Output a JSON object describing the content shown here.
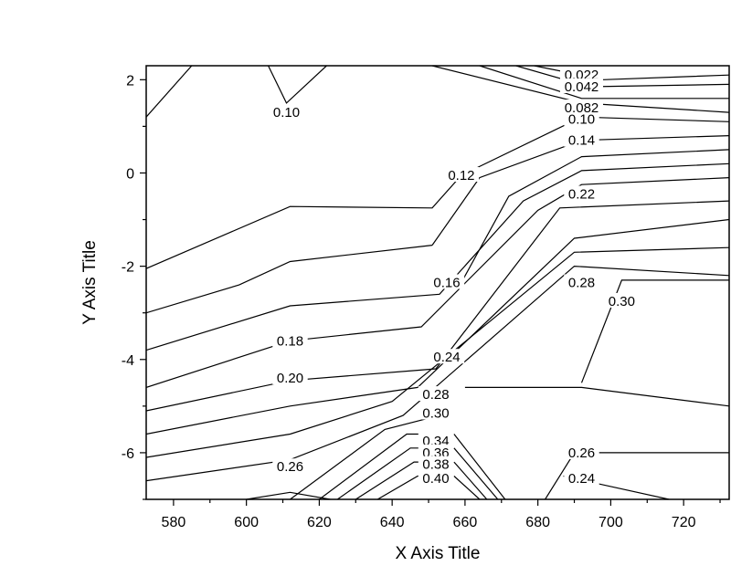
{
  "chart_data": {
    "type": "contour",
    "xlabel": "X Axis Title",
    "ylabel": "Y Axis Title",
    "xlim": [
      572.5,
      732.5
    ],
    "ylim": [
      -7,
      2.3
    ],
    "xticks": [
      580,
      600,
      620,
      640,
      660,
      680,
      700,
      720
    ],
    "yticks": [
      2,
      0,
      -2,
      -4,
      -6
    ],
    "contours": [
      {
        "level": "0.10",
        "labels": [
          {
            "x": 611,
            "y": 1.3
          },
          {
            "x": 692,
            "y": 1.15
          }
        ],
        "lines": [
          [
            [
              572.5,
              1.2
            ],
            [
              585,
              2.3
            ]
          ],
          [
            [
              606,
              2.3
            ],
            [
              611,
              1.5
            ],
            [
              622,
              2.3
            ]
          ],
          [
            [
              651,
              2.3
            ],
            [
              692,
              1.5
            ],
            [
              732.5,
              1.3
            ]
          ]
        ]
      },
      {
        "level": "0.022",
        "labels": [
          {
            "x": 692,
            "y": 2.1
          }
        ],
        "lines": [
          [
            [
              679,
              2.3
            ],
            [
              698,
              2.0
            ],
            [
              732.5,
              2.1
            ]
          ]
        ]
      },
      {
        "level": "0.042",
        "labels": [
          {
            "x": 692,
            "y": 1.85
          }
        ],
        "lines": [
          [
            [
              674,
              2.3
            ],
            [
              694,
              1.85
            ],
            [
              732.5,
              1.9
            ]
          ]
        ]
      },
      {
        "level": "0.082",
        "labels": [
          {
            "x": 692,
            "y": 1.4
          }
        ],
        "lines": [
          [
            [
              664,
              2.3
            ],
            [
              692,
              1.6
            ],
            [
              732.5,
              1.6
            ]
          ]
        ]
      },
      {
        "level": "0.12",
        "labels": [
          {
            "x": 659,
            "y": -0.05
          }
        ],
        "lines": [
          [
            [
              572.5,
              -2.05
            ],
            [
              612,
              -0.72
            ],
            [
              651,
              -0.75
            ],
            [
              659,
              -0.05
            ],
            [
              692,
              1.2
            ],
            [
              732.5,
              1.1
            ]
          ]
        ]
      },
      {
        "level": "0.14",
        "labels": [
          {
            "x": 692,
            "y": 0.7
          }
        ],
        "lines": [
          [
            [
              651,
              -1.55
            ],
            [
              664,
              -0.1
            ],
            [
              692,
              0.7
            ],
            [
              732.5,
              0.8
            ]
          ]
        ]
      },
      {
        "level": "0.16",
        "labels": [
          {
            "x": 655,
            "y": -2.35
          }
        ],
        "lines": [
          [
            [
              572.5,
              -3.0
            ],
            [
              598,
              -2.4
            ],
            [
              612,
              -1.9
            ],
            [
              651,
              -1.55
            ]
          ],
          [
            [
              659,
              -2.35
            ],
            [
              672,
              -0.5
            ],
            [
              692,
              0.35
            ],
            [
              732.5,
              0.5
            ]
          ]
        ]
      },
      {
        "level": "0.18",
        "labels": [
          {
            "x": 612,
            "y": -3.6
          }
        ],
        "lines": [
          [
            [
              572.5,
              -3.8
            ],
            [
              612,
              -2.85
            ],
            [
              653,
              -2.6
            ],
            [
              676,
              -0.6
            ],
            [
              692,
              0.05
            ],
            [
              732.5,
              0.2
            ]
          ]
        ]
      },
      {
        "level": "0.20",
        "labels": [
          {
            "x": 612,
            "y": -4.4
          }
        ],
        "lines": [
          [
            [
              572.5,
              -4.6
            ],
            [
              612,
              -3.6
            ],
            [
              648,
              -3.3
            ],
            [
              680,
              -0.8
            ],
            [
              692,
              -0.25
            ],
            [
              732.5,
              -0.1
            ]
          ]
        ]
      },
      {
        "level": "0.22",
        "labels": [
          {
            "x": 692,
            "y": -0.45
          }
        ],
        "lines": [
          [
            [
              572.5,
              -5.1
            ],
            [
              612,
              -4.45
            ],
            [
              652,
              -4.2
            ],
            [
              686,
              -0.75
            ],
            [
              732.5,
              -0.6
            ]
          ]
        ]
      },
      {
        "level": "0.24",
        "labels": [
          {
            "x": 655,
            "y": -3.95
          },
          {
            "x": 692,
            "y": -6.55
          }
        ],
        "lines": [
          [
            [
              572.5,
              -5.6
            ],
            [
              612,
              -5.0
            ],
            [
              647,
              -4.6
            ],
            [
              690,
              -1.4
            ],
            [
              732.5,
              -1.0
            ]
          ],
          [
            [
              687,
              -6.5
            ],
            [
              716,
              -7.0
            ]
          ]
        ]
      },
      {
        "level": "0.26",
        "labels": [
          {
            "x": 612,
            "y": -6.3
          },
          {
            "x": 692,
            "y": -6.0
          }
        ],
        "lines": [
          [
            [
              572.5,
              -6.1
            ],
            [
              612,
              -5.6
            ],
            [
              640,
              -4.9
            ],
            [
              690,
              -1.7
            ],
            [
              732.5,
              -1.6
            ]
          ],
          [
            [
              682,
              -7.0
            ],
            [
              690,
              -6.0
            ],
            [
              732.5,
              -6.0
            ]
          ]
        ]
      },
      {
        "level": "0.28",
        "labels": [
          {
            "x": 652,
            "y": -4.75
          },
          {
            "x": 692,
            "y": -2.35
          }
        ],
        "lines": [
          [
            [
              572.5,
              -6.6
            ],
            [
              612,
              -6.15
            ],
            [
              643,
              -5.2
            ],
            [
              690,
              -2.0
            ],
            [
              732.5,
              -2.2
            ]
          ],
          [
            [
              600,
              -7.0
            ],
            [
              612,
              -6.85
            ],
            [
              623,
              -7.0
            ]
          ]
        ]
      },
      {
        "level": "0.30",
        "labels": [
          {
            "x": 652,
            "y": -5.15
          },
          {
            "x": 703,
            "y": -2.75
          }
        ],
        "lines": [
          [
            [
              612,
              -7.0
            ],
            [
              638,
              -5.5
            ],
            [
              653,
              -5.2
            ]
          ],
          [
            [
              660,
              -4.6
            ],
            [
              692,
              -4.6
            ],
            [
              732.5,
              -5.0
            ]
          ],
          [
            [
              732.5,
              -2.3
            ],
            [
              703,
              -2.3
            ],
            [
              692,
              -4.5
            ]
          ]
        ]
      },
      {
        "level": "0.34",
        "labels": [
          {
            "x": 652,
            "y": -5.75
          }
        ],
        "lines": [
          [
            [
              620,
              -7.0
            ],
            [
              644,
              -5.6
            ],
            [
              653,
              -5.6
            ]
          ],
          [
            [
              657,
              -5.6
            ],
            [
              671,
              -7.0
            ]
          ]
        ]
      },
      {
        "level": "0.36",
        "labels": [
          {
            "x": 652,
            "y": -6.0
          }
        ],
        "lines": [
          [
            [
              625,
              -7.0
            ],
            [
              645,
              -5.9
            ],
            [
              653,
              -5.9
            ]
          ],
          [
            [
              657,
              -5.9
            ],
            [
              669,
              -7.0
            ]
          ]
        ]
      },
      {
        "level": "0.38",
        "labels": [
          {
            "x": 652,
            "y": -6.25
          }
        ],
        "lines": [
          [
            [
              630,
              -7.0
            ],
            [
              646,
              -6.2
            ],
            [
              653,
              -6.2
            ]
          ],
          [
            [
              657,
              -6.2
            ],
            [
              666,
              -7.0
            ]
          ]
        ]
      },
      {
        "level": "0.40",
        "labels": [
          {
            "x": 652,
            "y": -6.55
          }
        ],
        "lines": [
          [
            [
              636,
              -7.0
            ],
            [
              647,
              -6.5
            ],
            [
              653,
              -6.5
            ]
          ],
          [
            [
              657,
              -6.5
            ],
            [
              664,
              -7.0
            ]
          ]
        ]
      }
    ]
  }
}
